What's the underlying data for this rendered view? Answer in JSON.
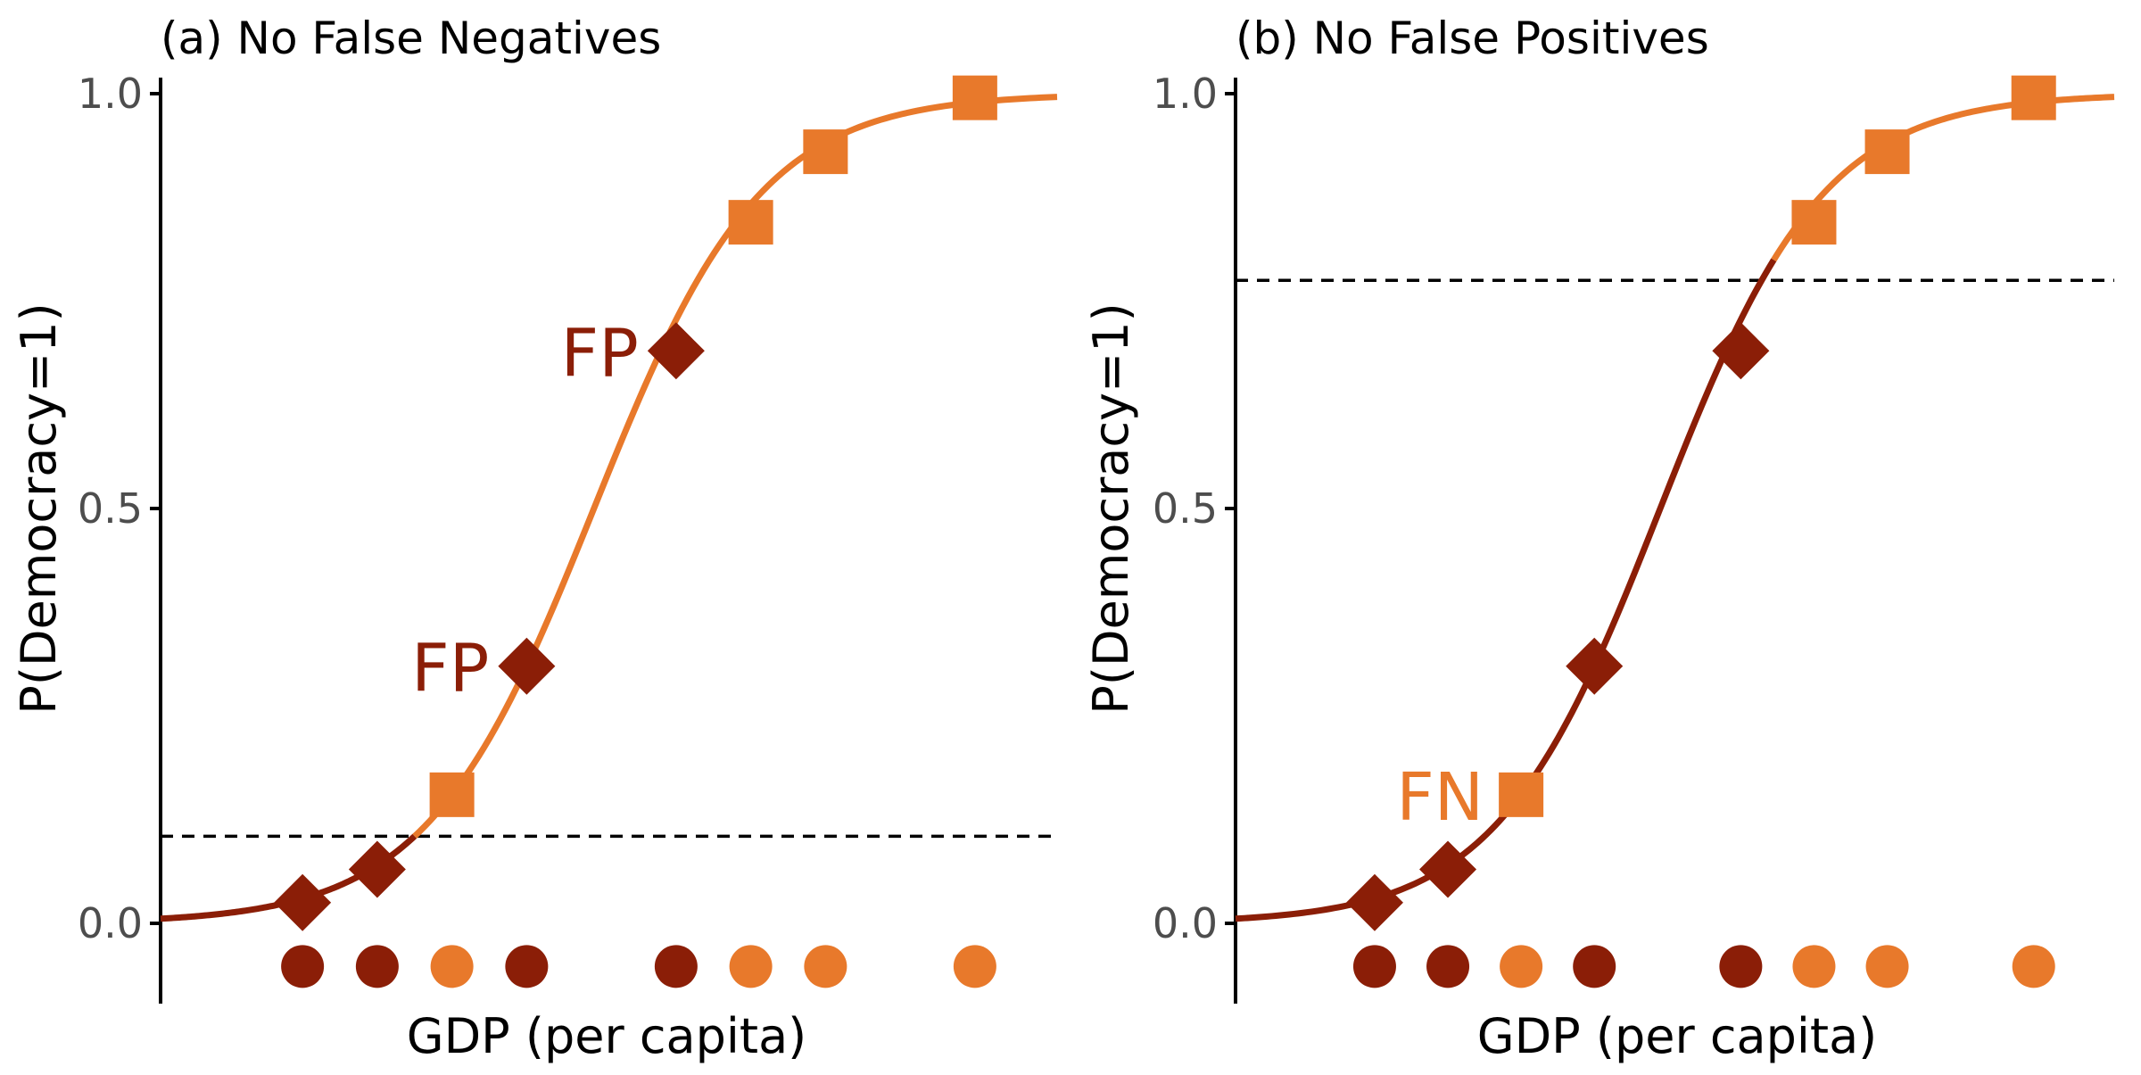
{
  "colors": {
    "positive": "#e8792b",
    "negative": "#8b1e07",
    "axis": "#000000",
    "tick_label": "#4d4d4d",
    "threshold": "#000000",
    "background": "#ffffff"
  },
  "chart_data": [
    {
      "type": "scatter",
      "panel": "a",
      "title": "(a) No False Negatives",
      "xlabel": "GDP (per capita)",
      "ylabel": "P(Democracy=1)",
      "ylim": [
        -0.1,
        1.0
      ],
      "yticks": [
        0.0,
        0.5,
        1.0
      ],
      "ytick_labels": [
        "0.0",
        "0.5",
        "1.0"
      ],
      "xlim": [
        0,
        12
      ],
      "x_ticks_shown": false,
      "grid": false,
      "legend": "none",
      "threshold": 0.105,
      "curve": {
        "type": "logistic",
        "midpoint": 5.8,
        "scale": 1.12,
        "segments": [
          {
            "from": 0.0,
            "to": 3.4,
            "color": "negative"
          },
          {
            "from": 3.4,
            "to": 12.0,
            "color": "positive"
          }
        ]
      },
      "points": [
        {
          "x": 1.9,
          "y": 0.025,
          "class": "negative",
          "shape": "diamond"
        },
        {
          "x": 2.9,
          "y": 0.065,
          "class": "negative",
          "shape": "diamond"
        },
        {
          "x": 3.9,
          "y": 0.155,
          "class": "positive",
          "shape": "square"
        },
        {
          "x": 4.9,
          "y": 0.31,
          "class": "negative",
          "shape": "diamond"
        },
        {
          "x": 6.9,
          "y": 0.69,
          "class": "negative",
          "shape": "diamond"
        },
        {
          "x": 7.9,
          "y": 0.845,
          "class": "positive",
          "shape": "square"
        },
        {
          "x": 8.9,
          "y": 0.93,
          "class": "positive",
          "shape": "square"
        },
        {
          "x": 10.9,
          "y": 0.995,
          "class": "positive",
          "shape": "square"
        }
      ],
      "rug": {
        "y": -0.052,
        "classes": [
          "negative",
          "negative",
          "positive",
          "negative",
          "negative",
          "positive",
          "positive",
          "positive"
        ]
      },
      "annotations": [
        {
          "text": "FP",
          "x": 4.9,
          "y": 0.31,
          "color": "negative"
        },
        {
          "text": "FP",
          "x": 6.9,
          "y": 0.69,
          "color": "negative"
        }
      ]
    },
    {
      "type": "scatter",
      "panel": "b",
      "title": "(b) No False Positives",
      "xlabel": "GDP (per capita)",
      "ylabel": "P(Democracy=1)",
      "ylim": [
        -0.1,
        1.0
      ],
      "yticks": [
        0.0,
        0.5,
        1.0
      ],
      "ytick_labels": [
        "0.0",
        "0.5",
        "1.0"
      ],
      "xlim": [
        0,
        12
      ],
      "x_ticks_shown": false,
      "grid": false,
      "legend": "none",
      "threshold": 0.775,
      "curve": {
        "type": "logistic",
        "midpoint": 5.8,
        "scale": 1.12,
        "segments": [
          {
            "from": 0.0,
            "to": 7.35,
            "color": "negative"
          },
          {
            "from": 7.35,
            "to": 12.0,
            "color": "positive"
          }
        ]
      },
      "points": [
        {
          "x": 1.9,
          "y": 0.025,
          "class": "negative",
          "shape": "diamond"
        },
        {
          "x": 2.9,
          "y": 0.065,
          "class": "negative",
          "shape": "diamond"
        },
        {
          "x": 3.9,
          "y": 0.155,
          "class": "positive",
          "shape": "square"
        },
        {
          "x": 4.9,
          "y": 0.31,
          "class": "negative",
          "shape": "diamond"
        },
        {
          "x": 6.9,
          "y": 0.69,
          "class": "negative",
          "shape": "diamond"
        },
        {
          "x": 7.9,
          "y": 0.845,
          "class": "positive",
          "shape": "square"
        },
        {
          "x": 8.9,
          "y": 0.93,
          "class": "positive",
          "shape": "square"
        },
        {
          "x": 10.9,
          "y": 0.995,
          "class": "positive",
          "shape": "square"
        }
      ],
      "rug": {
        "y": -0.052,
        "classes": [
          "negative",
          "negative",
          "positive",
          "negative",
          "negative",
          "positive",
          "positive",
          "positive"
        ]
      },
      "annotations": [
        {
          "text": "FN",
          "x": 3.9,
          "y": 0.155,
          "color": "positive"
        }
      ]
    }
  ]
}
